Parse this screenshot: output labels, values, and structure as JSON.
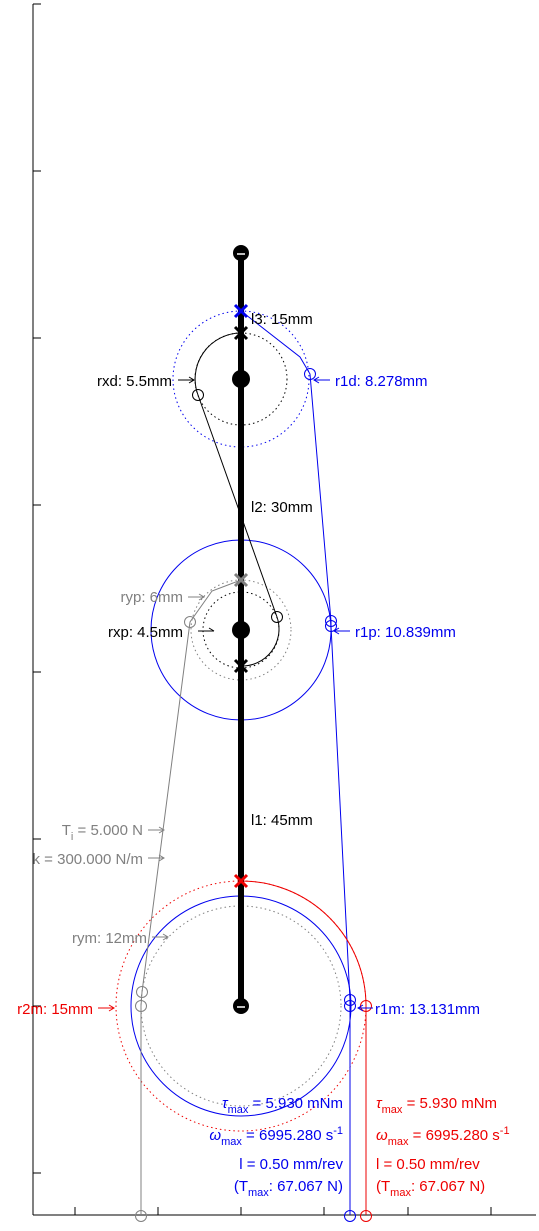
{
  "colors": {
    "black": "#000000",
    "blue": "#0000ee",
    "red": "#ee0000",
    "gray": "#808080"
  },
  "links": {
    "l1": "l1: 45mm",
    "l2": "l2: 30mm",
    "l3": "l3: 15mm"
  },
  "distal": {
    "rxd": "rxd: 5.5mm",
    "r1d": "r1d: 8.278mm"
  },
  "proximal": {
    "ryp": "ryp: 6mm",
    "rxp": "rxp: 4.5mm",
    "r1p": "r1p: 10.839mm"
  },
  "spring": {
    "ti_prefix": "T",
    "ti_sub": "i",
    "ti_value": " = 5.000 N",
    "k": "k = 300.000 N/m"
  },
  "motor": {
    "rym": "rym: 12mm",
    "r2m": "r2m: 15mm",
    "r1m": "r1m: 13.131mm"
  },
  "motor_blue": {
    "tau_sym": "τ",
    "tau_sub": "max",
    "tau_val": " = 5.930 mNm",
    "omega_sym": "ω",
    "omega_sub": "max",
    "omega_val": " = 6995.280 s",
    "omega_exp": "-1",
    "lead": "l = 0.50 mm/rev",
    "tmax_open": "(T",
    "tmax_sub": "max",
    "tmax_val": ": 67.067 N)"
  },
  "motor_red": {
    "tau_sym": "τ",
    "tau_sub": "max",
    "tau_val": " = 5.930 mNm",
    "omega_sym": "ω",
    "omega_sub": "max",
    "omega_val": " = 6995.280 s",
    "omega_exp": "-1",
    "lead": "l = 0.50 mm/rev",
    "tmax_open": "(T",
    "tmax_sub": "max",
    "tmax_val": ": 67.067 N)"
  }
}
